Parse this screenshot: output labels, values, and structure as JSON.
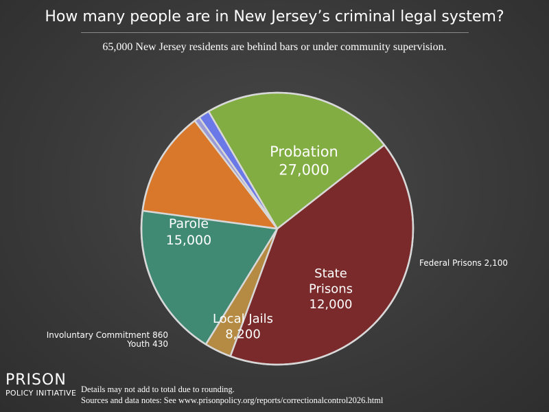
{
  "header": {
    "title": "How many people are in New Jersey’s criminal legal system?",
    "subtitle": "65,000 New Jersey residents are behind bars or under community supervision."
  },
  "chart_data": {
    "type": "pie",
    "title": "How many people are in New Jersey’s criminal legal system?",
    "subtitle": "65,000 New Jersey residents are behind bars or under community supervision.",
    "slices": [
      {
        "name": "Probation",
        "value": 27000,
        "value_label": "27,000",
        "color": "#7a2a2a",
        "label_lines": [
          "Probation"
        ],
        "label_style": "inside"
      },
      {
        "name": "Federal Prisons",
        "value": 2100,
        "value_label": "2,100",
        "color": "#b58a42",
        "label_lines": [
          "Federal Prisons 2,100"
        ],
        "label_style": "outside"
      },
      {
        "name": "State Prisons",
        "value": 12000,
        "value_label": "12,000",
        "color": "#408a74",
        "label_lines": [
          "State",
          "Prisons"
        ],
        "label_style": "inside"
      },
      {
        "name": "Local Jails",
        "value": 8200,
        "value_label": "8,200",
        "color": "#d9782a",
        "label_lines": [
          "Local Jails"
        ],
        "label_style": "inside"
      },
      {
        "name": "Youth",
        "value": 430,
        "value_label": "430",
        "color": "#9a9ad8",
        "label_lines": [
          "Youth 430"
        ],
        "label_style": "outside"
      },
      {
        "name": "Involuntary Commitment",
        "value": 860,
        "value_label": "860",
        "color": "#6a78e8",
        "label_lines": [
          "Involuntary Commitment 860"
        ],
        "label_style": "outside"
      },
      {
        "name": "Parole",
        "value": 15000,
        "value_label": "15,000",
        "color": "#82ad42",
        "label_lines": [
          "Parole"
        ],
        "label_style": "inside"
      }
    ],
    "slice_border_color": "#d8d8d8"
  },
  "branding": {
    "logo_line1": "PRISON",
    "logo_line2": "POLICY INITIATIVE"
  },
  "footer": {
    "note1": "Details may not add to total due to rounding.",
    "note2": "Sources and data notes: See www.prisonpolicy.org/reports/correctionalcontrol2026.html"
  }
}
